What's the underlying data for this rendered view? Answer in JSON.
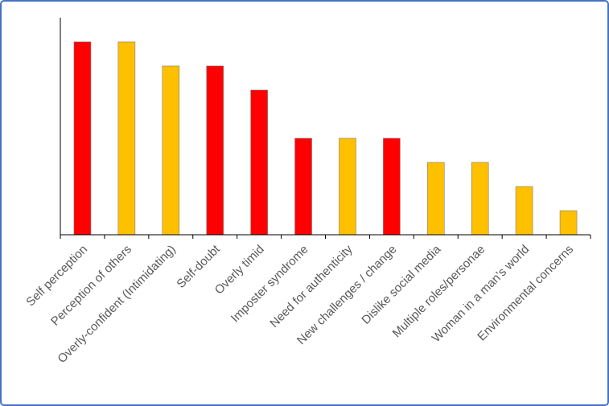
{
  "chart_data": {
    "type": "bar",
    "categories": [
      "Self perception",
      "Perception of others",
      "Overly-confident (Intimidating)",
      "Self-doubt",
      "Overly timid",
      "Imposter syndrome",
      "Need for authenticity",
      "New challenges / change",
      "Dislike social media",
      "Multiple roles/personae",
      "Woman in a man's world",
      "Environmental concerns"
    ],
    "values": [
      8,
      8,
      7,
      7,
      6,
      4,
      4,
      4,
      3,
      3,
      2,
      1
    ],
    "colors": [
      "#ff0000",
      "#ffc000",
      "#ffc000",
      "#ff0000",
      "#ff0000",
      "#ff0000",
      "#ffc000",
      "#ff0000",
      "#ffc000",
      "#ffc000",
      "#ffc000",
      "#ffc000"
    ],
    "ylim": [
      0,
      9
    ]
  }
}
